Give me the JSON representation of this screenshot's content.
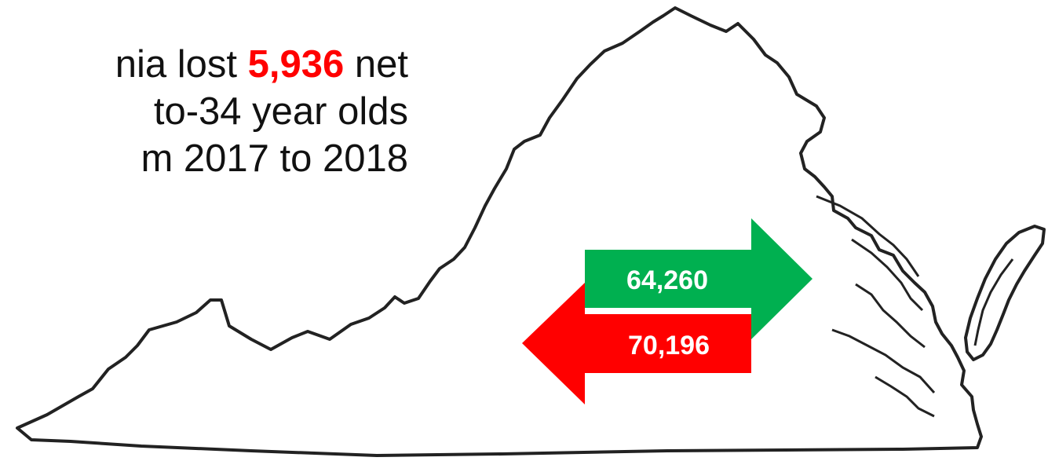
{
  "headline": {
    "line1_before": "nia lost",
    "line1_number": "5,936",
    "line1_after": "net",
    "line2": "to-34 year olds",
    "line3": "m 2017 to 2018"
  },
  "arrows": {
    "inbound": {
      "value": "64,260",
      "color": "#00b050"
    },
    "outbound": {
      "value": "70,196",
      "color": "#ff0000"
    }
  },
  "colors": {
    "text": "#111111",
    "emphasis": "#ff0000",
    "outline": "#222222"
  }
}
